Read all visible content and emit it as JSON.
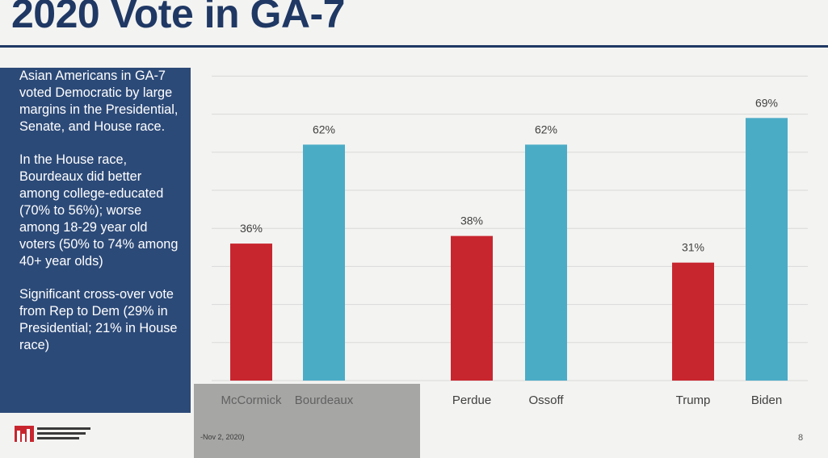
{
  "slide": {
    "title": "2020 Vote in GA-7",
    "page_number": "8",
    "source_note": "-Nov 2, 2020)"
  },
  "sidebar": {
    "paragraphs": [
      "Asian Americans in GA-7 voted Democratic by large margins in the Presidential, Senate, and House race.",
      "In the House race, Bourdeaux did better among college-educated (70% to 56%); worse among 18-29 year old voters (50% to 74% among 40+ year olds)",
      "Significant cross-over vote from Rep to Dem (29% in Presidential; 21% in House race)"
    ]
  },
  "colors": {
    "title": "#1f3864",
    "sidebar_bg": "#2c4a78",
    "republican": "#c8262f",
    "democrat": "#4bacc6",
    "gridline": "#d9d9d9"
  },
  "chart_data": {
    "type": "bar",
    "categories": [
      "McCormick",
      "Bourdeaux",
      "Perdue",
      "Ossoff",
      "Trump",
      "Biden"
    ],
    "values": [
      36,
      62,
      38,
      62,
      31,
      69
    ],
    "data_labels": [
      "36%",
      "62%",
      "38%",
      "62%",
      "31%",
      "69%"
    ],
    "party": [
      "rep",
      "dem",
      "rep",
      "dem",
      "rep",
      "dem"
    ],
    "ylim": [
      0,
      80
    ],
    "grid": true
  }
}
